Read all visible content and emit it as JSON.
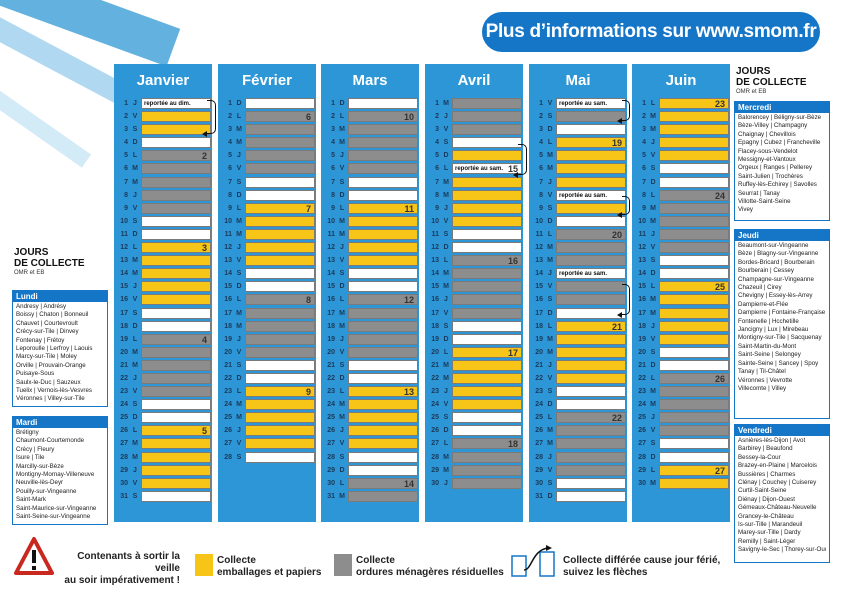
{
  "banner": {
    "text": "Plus d’informations sur www.smom.fr"
  },
  "left_header": {
    "title_line1": "JOURS",
    "title_line2": "DE COLLECTE",
    "subtitle": "OMR et EB"
  },
  "right_header": {
    "title_line1": "JOURS",
    "title_line2": "DE COLLECTE",
    "subtitle": "OMR et EB"
  },
  "colors": {
    "yellow": "#f7c418",
    "grey": "#8d8d8d",
    "blue": "#1576c8"
  },
  "months": [
    {
      "name": "Janvier",
      "days": [
        {
          "n": "1",
          "d": "J",
          "t": "white",
          "note": "reportée au dim."
        },
        {
          "n": "2",
          "d": "V",
          "t": "yellow"
        },
        {
          "n": "3",
          "d": "S",
          "t": "yellow"
        },
        {
          "n": "4",
          "d": "D",
          "t": "white"
        },
        {
          "n": "5",
          "d": "L",
          "t": "grey",
          "wk": "2"
        },
        {
          "n": "6",
          "d": "M",
          "t": "grey"
        },
        {
          "n": "7",
          "d": "M",
          "t": "grey"
        },
        {
          "n": "8",
          "d": "J",
          "t": "grey"
        },
        {
          "n": "9",
          "d": "V",
          "t": "grey"
        },
        {
          "n": "10",
          "d": "S",
          "t": "white"
        },
        {
          "n": "11",
          "d": "D",
          "t": "white"
        },
        {
          "n": "12",
          "d": "L",
          "t": "yellow",
          "wk": "3"
        },
        {
          "n": "13",
          "d": "M",
          "t": "yellow"
        },
        {
          "n": "14",
          "d": "M",
          "t": "yellow"
        },
        {
          "n": "15",
          "d": "J",
          "t": "yellow"
        },
        {
          "n": "16",
          "d": "V",
          "t": "yellow"
        },
        {
          "n": "17",
          "d": "S",
          "t": "white"
        },
        {
          "n": "18",
          "d": "D",
          "t": "white"
        },
        {
          "n": "19",
          "d": "L",
          "t": "grey",
          "wk": "4"
        },
        {
          "n": "20",
          "d": "M",
          "t": "grey"
        },
        {
          "n": "21",
          "d": "M",
          "t": "grey"
        },
        {
          "n": "22",
          "d": "J",
          "t": "grey"
        },
        {
          "n": "23",
          "d": "V",
          "t": "grey"
        },
        {
          "n": "24",
          "d": "S",
          "t": "white"
        },
        {
          "n": "25",
          "d": "D",
          "t": "white"
        },
        {
          "n": "26",
          "d": "L",
          "t": "yellow",
          "wk": "5"
        },
        {
          "n": "27",
          "d": "M",
          "t": "yellow"
        },
        {
          "n": "28",
          "d": "M",
          "t": "yellow"
        },
        {
          "n": "29",
          "d": "J",
          "t": "yellow"
        },
        {
          "n": "30",
          "d": "V",
          "t": "yellow"
        },
        {
          "n": "31",
          "d": "S",
          "t": "white"
        }
      ]
    },
    {
      "name": "Février",
      "days": [
        {
          "n": "1",
          "d": "D",
          "t": "white"
        },
        {
          "n": "2",
          "d": "L",
          "t": "grey",
          "wk": "6"
        },
        {
          "n": "3",
          "d": "M",
          "t": "grey"
        },
        {
          "n": "4",
          "d": "M",
          "t": "grey"
        },
        {
          "n": "5",
          "d": "J",
          "t": "grey"
        },
        {
          "n": "6",
          "d": "V",
          "t": "grey"
        },
        {
          "n": "7",
          "d": "S",
          "t": "white"
        },
        {
          "n": "8",
          "d": "D",
          "t": "white"
        },
        {
          "n": "9",
          "d": "L",
          "t": "yellow",
          "wk": "7"
        },
        {
          "n": "10",
          "d": "M",
          "t": "yellow"
        },
        {
          "n": "11",
          "d": "M",
          "t": "yellow"
        },
        {
          "n": "12",
          "d": "J",
          "t": "yellow"
        },
        {
          "n": "13",
          "d": "V",
          "t": "yellow"
        },
        {
          "n": "14",
          "d": "S",
          "t": "white"
        },
        {
          "n": "15",
          "d": "D",
          "t": "white"
        },
        {
          "n": "16",
          "d": "L",
          "t": "grey",
          "wk": "8"
        },
        {
          "n": "17",
          "d": "M",
          "t": "grey"
        },
        {
          "n": "18",
          "d": "M",
          "t": "grey"
        },
        {
          "n": "19",
          "d": "J",
          "t": "grey"
        },
        {
          "n": "20",
          "d": "V",
          "t": "grey"
        },
        {
          "n": "21",
          "d": "S",
          "t": "white"
        },
        {
          "n": "22",
          "d": "D",
          "t": "white"
        },
        {
          "n": "23",
          "d": "L",
          "t": "yellow",
          "wk": "9"
        },
        {
          "n": "24",
          "d": "M",
          "t": "yellow"
        },
        {
          "n": "25",
          "d": "M",
          "t": "yellow"
        },
        {
          "n": "26",
          "d": "J",
          "t": "yellow"
        },
        {
          "n": "27",
          "d": "V",
          "t": "yellow"
        },
        {
          "n": "28",
          "d": "S",
          "t": "white"
        }
      ]
    },
    {
      "name": "Mars",
      "days": [
        {
          "n": "1",
          "d": "D",
          "t": "white"
        },
        {
          "n": "2",
          "d": "L",
          "t": "grey",
          "wk": "10"
        },
        {
          "n": "3",
          "d": "M",
          "t": "grey"
        },
        {
          "n": "4",
          "d": "M",
          "t": "grey"
        },
        {
          "n": "5",
          "d": "J",
          "t": "grey"
        },
        {
          "n": "6",
          "d": "V",
          "t": "grey"
        },
        {
          "n": "7",
          "d": "S",
          "t": "white"
        },
        {
          "n": "8",
          "d": "D",
          "t": "white"
        },
        {
          "n": "9",
          "d": "L",
          "t": "yellow",
          "wk": "11"
        },
        {
          "n": "10",
          "d": "M",
          "t": "yellow"
        },
        {
          "n": "11",
          "d": "M",
          "t": "yellow"
        },
        {
          "n": "12",
          "d": "J",
          "t": "yellow"
        },
        {
          "n": "13",
          "d": "V",
          "t": "yellow"
        },
        {
          "n": "14",
          "d": "S",
          "t": "white"
        },
        {
          "n": "15",
          "d": "D",
          "t": "white"
        },
        {
          "n": "16",
          "d": "L",
          "t": "grey",
          "wk": "12"
        },
        {
          "n": "17",
          "d": "M",
          "t": "grey"
        },
        {
          "n": "18",
          "d": "M",
          "t": "grey"
        },
        {
          "n": "19",
          "d": "J",
          "t": "grey"
        },
        {
          "n": "20",
          "d": "V",
          "t": "grey"
        },
        {
          "n": "21",
          "d": "S",
          "t": "white"
        },
        {
          "n": "22",
          "d": "D",
          "t": "white"
        },
        {
          "n": "23",
          "d": "L",
          "t": "yellow",
          "wk": "13"
        },
        {
          "n": "24",
          "d": "M",
          "t": "yellow"
        },
        {
          "n": "25",
          "d": "M",
          "t": "yellow"
        },
        {
          "n": "26",
          "d": "J",
          "t": "yellow"
        },
        {
          "n": "27",
          "d": "V",
          "t": "yellow"
        },
        {
          "n": "28",
          "d": "S",
          "t": "white"
        },
        {
          "n": "29",
          "d": "D",
          "t": "white"
        },
        {
          "n": "30",
          "d": "L",
          "t": "grey",
          "wk": "14"
        },
        {
          "n": "31",
          "d": "M",
          "t": "grey"
        }
      ]
    },
    {
      "name": "Avril",
      "days": [
        {
          "n": "1",
          "d": "M",
          "t": "grey"
        },
        {
          "n": "2",
          "d": "J",
          "t": "grey"
        },
        {
          "n": "3",
          "d": "V",
          "t": "grey"
        },
        {
          "n": "4",
          "d": "S",
          "t": "white"
        },
        {
          "n": "5",
          "d": "D",
          "t": "yellow"
        },
        {
          "n": "6",
          "d": "L",
          "t": "white",
          "note": "reportée au sam.",
          "wk": "15"
        },
        {
          "n": "7",
          "d": "M",
          "t": "yellow"
        },
        {
          "n": "8",
          "d": "M",
          "t": "yellow"
        },
        {
          "n": "9",
          "d": "J",
          "t": "yellow"
        },
        {
          "n": "10",
          "d": "V",
          "t": "yellow"
        },
        {
          "n": "11",
          "d": "S",
          "t": "white"
        },
        {
          "n": "12",
          "d": "D",
          "t": "white"
        },
        {
          "n": "13",
          "d": "L",
          "t": "grey",
          "wk": "16"
        },
        {
          "n": "14",
          "d": "M",
          "t": "grey"
        },
        {
          "n": "15",
          "d": "M",
          "t": "grey"
        },
        {
          "n": "16",
          "d": "J",
          "t": "grey"
        },
        {
          "n": "17",
          "d": "V",
          "t": "grey"
        },
        {
          "n": "18",
          "d": "S",
          "t": "white"
        },
        {
          "n": "19",
          "d": "D",
          "t": "white"
        },
        {
          "n": "20",
          "d": "L",
          "t": "yellow",
          "wk": "17"
        },
        {
          "n": "21",
          "d": "M",
          "t": "yellow"
        },
        {
          "n": "22",
          "d": "M",
          "t": "yellow"
        },
        {
          "n": "23",
          "d": "J",
          "t": "yellow"
        },
        {
          "n": "24",
          "d": "V",
          "t": "yellow"
        },
        {
          "n": "25",
          "d": "S",
          "t": "white"
        },
        {
          "n": "26",
          "d": "D",
          "t": "white"
        },
        {
          "n": "27",
          "d": "L",
          "t": "grey",
          "wk": "18"
        },
        {
          "n": "28",
          "d": "M",
          "t": "grey"
        },
        {
          "n": "29",
          "d": "M",
          "t": "grey"
        },
        {
          "n": "30",
          "d": "J",
          "t": "grey"
        }
      ]
    },
    {
      "name": "Mai",
      "days": [
        {
          "n": "1",
          "d": "V",
          "t": "white",
          "note": "reportée au sam."
        },
        {
          "n": "2",
          "d": "S",
          "t": "grey"
        },
        {
          "n": "3",
          "d": "D",
          "t": "white"
        },
        {
          "n": "4",
          "d": "L",
          "t": "yellow",
          "wk": "19"
        },
        {
          "n": "5",
          "d": "M",
          "t": "yellow"
        },
        {
          "n": "6",
          "d": "M",
          "t": "yellow"
        },
        {
          "n": "7",
          "d": "J",
          "t": "yellow"
        },
        {
          "n": "8",
          "d": "V",
          "t": "white",
          "note": "reportée au sam."
        },
        {
          "n": "9",
          "d": "S",
          "t": "yellow"
        },
        {
          "n": "10",
          "d": "D",
          "t": "white"
        },
        {
          "n": "11",
          "d": "L",
          "t": "grey",
          "wk": "20"
        },
        {
          "n": "12",
          "d": "M",
          "t": "grey"
        },
        {
          "n": "13",
          "d": "M",
          "t": "grey"
        },
        {
          "n": "14",
          "d": "J",
          "t": "white",
          "note": "reportée au sam."
        },
        {
          "n": "15",
          "d": "V",
          "t": "grey"
        },
        {
          "n": "16",
          "d": "S",
          "t": "grey"
        },
        {
          "n": "17",
          "d": "D",
          "t": "white"
        },
        {
          "n": "18",
          "d": "L",
          "t": "yellow",
          "wk": "21"
        },
        {
          "n": "19",
          "d": "M",
          "t": "yellow"
        },
        {
          "n": "20",
          "d": "M",
          "t": "yellow"
        },
        {
          "n": "21",
          "d": "J",
          "t": "yellow"
        },
        {
          "n": "22",
          "d": "V",
          "t": "yellow"
        },
        {
          "n": "23",
          "d": "S",
          "t": "white"
        },
        {
          "n": "24",
          "d": "D",
          "t": "white"
        },
        {
          "n": "25",
          "d": "L",
          "t": "grey",
          "wk": "22"
        },
        {
          "n": "26",
          "d": "M",
          "t": "grey"
        },
        {
          "n": "27",
          "d": "M",
          "t": "grey"
        },
        {
          "n": "28",
          "d": "J",
          "t": "grey"
        },
        {
          "n": "29",
          "d": "V",
          "t": "grey"
        },
        {
          "n": "30",
          "d": "S",
          "t": "white"
        },
        {
          "n": "31",
          "d": "D",
          "t": "white"
        }
      ]
    },
    {
      "name": "Juin",
      "days": [
        {
          "n": "1",
          "d": "L",
          "t": "yellow",
          "wk": "23"
        },
        {
          "n": "2",
          "d": "M",
          "t": "yellow"
        },
        {
          "n": "3",
          "d": "M",
          "t": "yellow"
        },
        {
          "n": "4",
          "d": "J",
          "t": "yellow"
        },
        {
          "n": "5",
          "d": "V",
          "t": "yellow"
        },
        {
          "n": "6",
          "d": "S",
          "t": "white"
        },
        {
          "n": "7",
          "d": "D",
          "t": "white"
        },
        {
          "n": "8",
          "d": "L",
          "t": "grey",
          "wk": "24"
        },
        {
          "n": "9",
          "d": "M",
          "t": "grey"
        },
        {
          "n": "10",
          "d": "M",
          "t": "grey"
        },
        {
          "n": "11",
          "d": "J",
          "t": "grey"
        },
        {
          "n": "12",
          "d": "V",
          "t": "grey"
        },
        {
          "n": "13",
          "d": "S",
          "t": "white"
        },
        {
          "n": "14",
          "d": "D",
          "t": "white"
        },
        {
          "n": "15",
          "d": "L",
          "t": "yellow",
          "wk": "25"
        },
        {
          "n": "16",
          "d": "M",
          "t": "yellow"
        },
        {
          "n": "17",
          "d": "M",
          "t": "yellow"
        },
        {
          "n": "18",
          "d": "J",
          "t": "yellow"
        },
        {
          "n": "19",
          "d": "V",
          "t": "yellow"
        },
        {
          "n": "20",
          "d": "S",
          "t": "white"
        },
        {
          "n": "21",
          "d": "D",
          "t": "white"
        },
        {
          "n": "22",
          "d": "L",
          "t": "grey",
          "wk": "26"
        },
        {
          "n": "23",
          "d": "M",
          "t": "grey"
        },
        {
          "n": "24",
          "d": "M",
          "t": "grey"
        },
        {
          "n": "25",
          "d": "J",
          "t": "grey"
        },
        {
          "n": "26",
          "d": "V",
          "t": "grey"
        },
        {
          "n": "27",
          "d": "S",
          "t": "white"
        },
        {
          "n": "28",
          "d": "D",
          "t": "white"
        },
        {
          "n": "29",
          "d": "L",
          "t": "yellow",
          "wk": "27"
        },
        {
          "n": "30",
          "d": "M",
          "t": "yellow"
        }
      ]
    }
  ],
  "lundi": {
    "title": "Lundi",
    "lines": [
      "Andresy | Andrésy",
      "Boissy | Chaton | Bonneuil",
      "Chauvet | Courtevroult",
      "Crécy-sur-Tile | Dinvey",
      "Fontenay | Frétoy",
      "Leporoulle | Lerfroy | Laouis",
      "Marcy-sur-Tile | Moley",
      "Orville | Prouvain-Orange",
      "Puisaye-Sous",
      "Saulx-le-Duc | Sauzeux",
      "Tuelix | Vernois-lès-Vesvres",
      "Véronnes | Villey-sur-Tile"
    ]
  },
  "mardi": {
    "title": "Mardi",
    "lines": [
      "Brétigny",
      "Chaumont-Courtemonde",
      "Crécy | Fleury",
      "Isure | Tile",
      "Marcilly-sur-Bèze",
      "Montigny-Mornay-Villeneuve",
      "Neuville-lès-Deyr",
      "Pouilly-sur-Vingeanne",
      "Saint-Mark",
      "Saint-Maurice-sur-Vingeanne",
      "Saint-Seine-sur-Vingeanne"
    ]
  },
  "mercredi": {
    "title": "Mercredi",
    "lines": [
      "Balorencey | Béligny-sur-Bèze",
      "Bèze-Villey | Champagny",
      "Chaignay | Chevillois",
      "Epagny | Cubez | Francheville",
      "Flacey-sous-Vendelot",
      "Messigny-et-Vantoux",
      "Orgeux | Ranges | Pellerey",
      "Saint-Julien | Trochères",
      "Ruffey-lès-Echirey | Savolles",
      "Seurrat | Tanay",
      "Villotte-Saint-Seine",
      "Vivey"
    ]
  },
  "jeudi": {
    "title": "Jeudi",
    "lines": [
      "Beaumont-sur-Vingeanne",
      "Bèze | Blagny-sur-Vingeanne",
      "Bordes-Bricard | Bourberain",
      "Bourberain | Cessey",
      "Champagne-sur-Vingeanne",
      "Chazeuil | Cirey",
      "Chevigny | Essey-lès-Arrey",
      "Dampierre-et-Flée",
      "Dampierre | Fontaine-Française",
      "Fontenelle | Hcchetille",
      "Jancigny | Lux | Mirebeau",
      "Montigny-sur-Tile | Sacquenay",
      "Saint-Martin-du-Mont",
      "Saint-Seine | Selongey",
      "Sainte-Seine | Sancey | Spoy",
      "Tanay | Til-Châtel",
      "Véronnes | Vevrotte",
      "Villecomte | Villey"
    ]
  },
  "vendredi": {
    "title": "Vendredi",
    "lines": [
      "Asnières-lès-Dijon | Avot",
      "Barbirey | Beaufond",
      "Bessey-la-Cour",
      "Brazey-en-Plaine | Marcelois",
      "Bussières | Charmes",
      "Clénay | Couchey | Cuiserey",
      "Curtil-Saint-Seine",
      "Diénay | Dijon-Ouest",
      "Gémeaux-Château-Neuvelle",
      "Grancey-le-Château",
      "Is-sur-Tille | Marandeuil",
      "Marey-sur-Tille | Dardy",
      "Remilly | Saint-Léger",
      "Savigny-le-Sec | Thorey-sur-Ouche"
    ]
  },
  "legend": {
    "warn_line1": "Contenants à sortir la veille",
    "warn_line2": "au soir impérativement !",
    "yellow_line1": "Collecte",
    "yellow_line2": "emballages et papiers",
    "grey_line1": "Collecte",
    "grey_line2": "ordures ménagères résiduelles",
    "arrow_line1": "Collecte différée cause jour férié,",
    "arrow_line2": "suivez les flèches"
  }
}
